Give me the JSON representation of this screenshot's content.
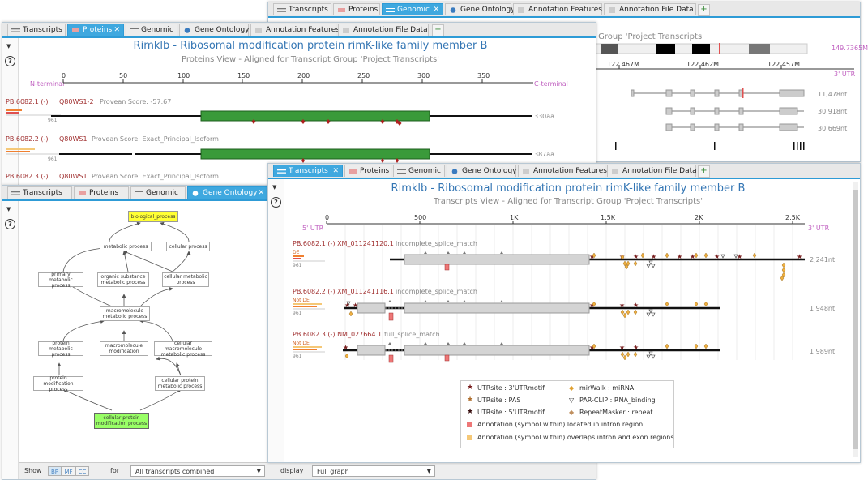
{
  "tabs": {
    "transcripts": "Transcripts",
    "proteins": "Proteins",
    "genomic": "Genomic",
    "gene_ontology": "Gene Ontology",
    "annotation_features": "Annotation Features",
    "annotation_file_data": "Annotation File Data",
    "close": "✕",
    "add": "+"
  },
  "genomic": {
    "subtitle_fragment": "t Group 'Project Transcripts'",
    "chrom_label": "149.7365M",
    "ticks": [
      "122.467M",
      "122.462M",
      "122.457M"
    ],
    "utr_label": "3' UTR",
    "lengths": [
      "11,478nt",
      "30,918nt",
      "30,669nt"
    ]
  },
  "proteins": {
    "title": "Rimklb - Ribosomal modification protein rimK-like family member B",
    "subtitle": "Proteins View - Aligned for Transcript Group 'Project Transcripts'",
    "n_terminal": "N-terminal",
    "c_terminal": "C-terminal",
    "ticks": [
      "0",
      "50",
      "100",
      "150",
      "200",
      "250",
      "300",
      "350"
    ],
    "rows": [
      {
        "name": "PB.6082.1 (-)",
        "acc": "Q80WS1-2",
        "score": "Provean Score: -57.67",
        "count": "961",
        "length": "330aa"
      },
      {
        "name": "PB.6082.2 (-)",
        "acc": "Q80WS1",
        "score": "Provean Score: Exact_Principal_Isoform",
        "count": "961",
        "length": "387aa"
      },
      {
        "name": "PB.6082.3 (-)",
        "acc": "Q80WS1",
        "score": "Provean Score: Exact_Principal_Isoform"
      }
    ]
  },
  "go": {
    "nodes": {
      "biological_process": "biological_process",
      "metabolic_process": "metabolic process",
      "cellular_process": "cellular process",
      "primary_metabolic": "primary metabolic process",
      "organic_substance": "organic substance metabolic process",
      "cellular_metabolic": "cellular metabolic process",
      "macromolecule_metabolic": "macromolecule metabolic process",
      "protein_metabolic": "protein metabolic process",
      "macromolecule_modification": "macromolecule modification",
      "cellular_macromolecule": "cellular macromolecule metabolic process",
      "protein_modification": "protein modification process",
      "cellular_protein_metabolic": "cellular protein metabolic process",
      "cellular_protein_modification": "cellular protein modification process"
    },
    "show_label": "Show",
    "bp": "BP",
    "mf": "MF",
    "cc": "CC",
    "for_label": "for",
    "for_value": "All transcripts combined",
    "display_label": "display",
    "display_value": "Full graph"
  },
  "transcripts": {
    "title": "Rimklb - Ribosomal modification protein rimK-like family member B",
    "subtitle": "Transcripts View - Aligned for Transcript Group 'Project Transcripts'",
    "utr5": "5' UTR",
    "utr3": "3' UTR",
    "ticks": [
      "0",
      "500",
      "1K",
      "1.5K",
      "2K",
      "2.5K"
    ],
    "rows": [
      {
        "name": "PB.6082.1 (-) XM_011241120.1",
        "match": "incomplete_splice_match",
        "tag": "DE",
        "count": "961",
        "length": "2,241nt"
      },
      {
        "name": "PB.6082.2 (-) XM_011241116.1",
        "match": "incomplete_splice_match",
        "tag": "Not DE",
        "count": "961",
        "length": "1,948nt"
      },
      {
        "name": "PB.6082.3 (-) NM_027664.1",
        "match": "full_splice_match",
        "tag": "Not DE",
        "count": "961",
        "length": "1,989nt"
      }
    ],
    "legend": {
      "utr3_motif": "UTRsite : 3'UTRmotif",
      "utr_pas": "UTRsite : PAS",
      "utr5_motif": "UTRsite : 5'UTRmotif",
      "mirwalk": "mirWalk : miRNA",
      "parclip": "PAR-CLIP : RNA_binding",
      "repeatmasker": "RepeatMasker : repeat",
      "intron": "Annotation (symbol within) located in intron region",
      "overlap": "Annotation (symbol within) overlaps intron and exon regions"
    }
  },
  "colors": {
    "accent": "#3fa8df",
    "title_blue": "#3476b4",
    "protein_green": "#3a9a3a",
    "go_root": "#ffff33",
    "go_leaf": "#99ff66",
    "intron_red": "#ee7777",
    "overlap_orange": "#f5c877"
  }
}
